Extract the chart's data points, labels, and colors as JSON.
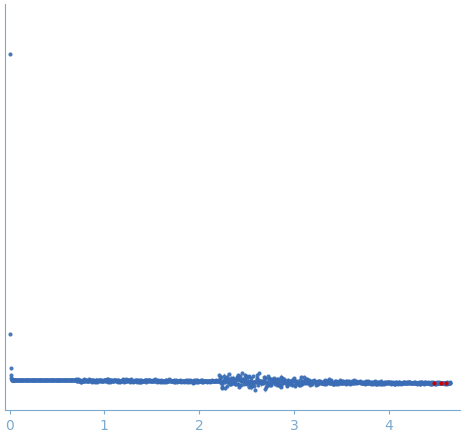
{
  "title": "",
  "xlabel": "",
  "ylabel": "",
  "xlim": [
    -0.05,
    4.75
  ],
  "point_color": "#3a6db5",
  "error_color": "#7aaad0",
  "outlier_color": "#cc0000",
  "bg_color": "#ffffff",
  "axis_color": "#7aaad0",
  "tick_color": "#7aaad0",
  "label_color": "#7aaad0",
  "xticks": [
    0,
    1,
    2,
    3,
    4
  ],
  "marker_size": 2.0,
  "elinewidth": 0.6,
  "seed": 42,
  "I0": 1.0,
  "Rg": 0.55
}
